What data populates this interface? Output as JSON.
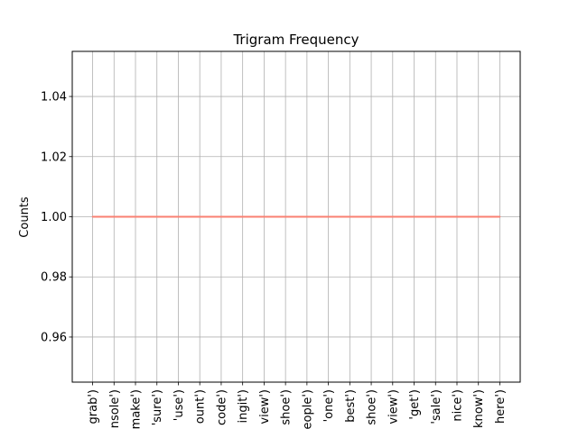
{
  "chart_data": {
    "type": "line",
    "title": "Trigram Frequency",
    "xlabel": "",
    "ylabel": "Counts",
    "categories": [
      "grab')",
      "nsole')",
      "make')",
      "'sure')",
      "'use')",
      "ount')",
      "code')",
      "ingit')",
      "view')",
      "shoe')",
      "eople')",
      "'one')",
      "best')",
      "shoe')",
      "view')",
      "'get')",
      "'sale')",
      "nice')",
      "know')",
      "here')"
    ],
    "series": [
      {
        "values": [
          1,
          1,
          1,
          1,
          1,
          1,
          1,
          1,
          1,
          1,
          1,
          1,
          1,
          1,
          1,
          1,
          1,
          1,
          1,
          1
        ]
      }
    ],
    "ylim": [
      0.945,
      1.055
    ],
    "yticks": [
      0.96,
      0.98,
      1.0,
      1.02,
      1.04
    ],
    "ytick_labels": [
      "0.96",
      "0.98",
      "1.00",
      "1.02",
      "1.04"
    ],
    "grid": true,
    "line_color": "#fa8072"
  }
}
